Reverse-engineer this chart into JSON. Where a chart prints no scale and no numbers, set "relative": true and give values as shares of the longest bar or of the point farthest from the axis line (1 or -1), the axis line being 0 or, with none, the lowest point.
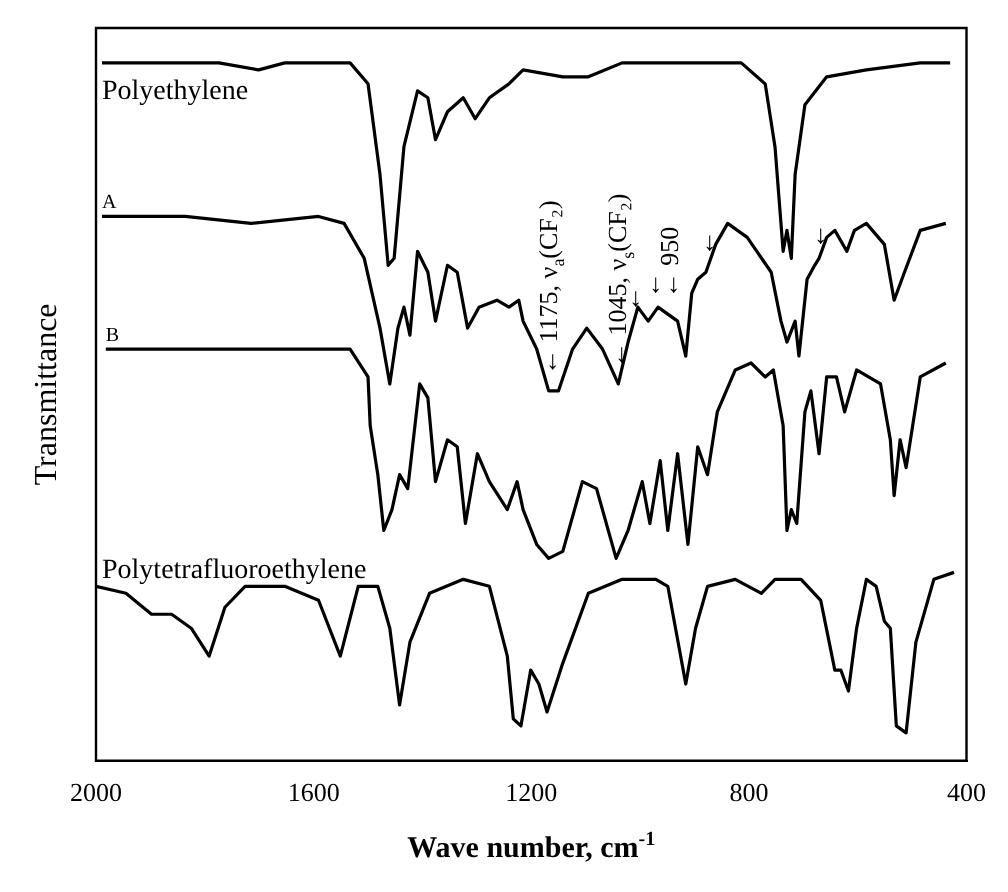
{
  "chart_data": {
    "type": "line",
    "relative": true,
    "xlabel": "Wave number, cm$^{-1}$",
    "ylabel": "Transmittance",
    "xlim": [
      2000,
      400
    ],
    "xticks": [
      2000,
      1600,
      1200,
      800,
      400
    ],
    "grid": false,
    "legend": false,
    "marker": "none",
    "line_style": "solid",
    "series": [
      {
        "name": "Polyethylene",
        "color": "#000000",
        "x": [
          1989,
          1774,
          1701,
          1653,
          1533,
          1500,
          1478,
          1463,
          1452,
          1434,
          1409,
          1390,
          1376,
          1354,
          1325,
          1303,
          1277,
          1241,
          1215,
          1142,
          1095,
          1033,
          971,
          814,
          770,
          752,
          737,
          730,
          722,
          715,
          697,
          657,
          584,
          485,
          430
        ],
        "values": [
          1.0,
          1.0,
          0.99,
          1.0,
          1.0,
          0.97,
          0.84,
          0.71,
          0.72,
          0.88,
          0.96,
          0.95,
          0.89,
          0.93,
          0.95,
          0.92,
          0.95,
          0.97,
          0.99,
          0.98,
          0.98,
          1.0,
          1.0,
          1.0,
          0.97,
          0.88,
          0.73,
          0.76,
          0.72,
          0.84,
          0.94,
          0.98,
          0.99,
          1.0,
          1.0
        ]
      },
      {
        "name": "A",
        "color": "#000000",
        "x": [
          1989,
          1836,
          1715,
          1591,
          1544,
          1507,
          1478,
          1460,
          1445,
          1434,
          1423,
          1409,
          1390,
          1376,
          1354,
          1336,
          1317,
          1296,
          1263,
          1241,
          1223,
          1215,
          1190,
          1168,
          1150,
          1124,
          1098,
          1069,
          1040,
          1022,
          1004,
          985,
          967,
          949,
          931,
          916,
          905,
          894,
          879,
          861,
          839,
          803,
          759,
          741,
          730,
          715,
          708,
          693,
          679,
          671,
          657,
          642,
          620,
          606,
          584,
          551,
          533,
          514,
          485,
          438
        ],
        "values": [
          0.78,
          0.78,
          0.77,
          0.78,
          0.77,
          0.72,
          0.62,
          0.54,
          0.62,
          0.65,
          0.61,
          0.73,
          0.7,
          0.63,
          0.71,
          0.7,
          0.62,
          0.65,
          0.66,
          0.65,
          0.66,
          0.63,
          0.59,
          0.53,
          0.53,
          0.59,
          0.62,
          0.59,
          0.54,
          0.6,
          0.65,
          0.63,
          0.65,
          0.64,
          0.63,
          0.58,
          0.67,
          0.69,
          0.7,
          0.74,
          0.77,
          0.75,
          0.7,
          0.63,
          0.6,
          0.63,
          0.58,
          0.69,
          0.71,
          0.72,
          0.75,
          0.76,
          0.73,
          0.76,
          0.77,
          0.74,
          0.66,
          0.7,
          0.76,
          0.77
        ]
      },
      {
        "name": "B",
        "color": "#000000",
        "x": [
          1982,
          1836,
          1653,
          1533,
          1500,
          1496,
          1482,
          1471,
          1456,
          1442,
          1427,
          1405,
          1390,
          1376,
          1354,
          1336,
          1321,
          1299,
          1277,
          1244,
          1226,
          1215,
          1190,
          1168,
          1142,
          1106,
          1080,
          1044,
          1022,
          996,
          982,
          963,
          949,
          931,
          912,
          894,
          876,
          858,
          825,
          796,
          770,
          755,
          737,
          730,
          722,
          712,
          697,
          686,
          671,
          657,
          639,
          624,
          602,
          558,
          540,
          533,
          522,
          511,
          485,
          438
        ],
        "values": [
          0.59,
          0.59,
          0.59,
          0.59,
          0.55,
          0.48,
          0.41,
          0.33,
          0.36,
          0.41,
          0.39,
          0.54,
          0.52,
          0.4,
          0.46,
          0.45,
          0.34,
          0.44,
          0.4,
          0.36,
          0.4,
          0.36,
          0.31,
          0.29,
          0.3,
          0.4,
          0.39,
          0.29,
          0.33,
          0.4,
          0.34,
          0.43,
          0.33,
          0.44,
          0.31,
          0.45,
          0.41,
          0.5,
          0.56,
          0.57,
          0.55,
          0.56,
          0.48,
          0.33,
          0.36,
          0.34,
          0.5,
          0.53,
          0.44,
          0.55,
          0.55,
          0.5,
          0.56,
          0.54,
          0.46,
          0.38,
          0.46,
          0.42,
          0.55,
          0.57
        ]
      },
      {
        "name": "Polytetrafluoroethylene",
        "color": "#000000",
        "x": [
          2000,
          1945,
          1898,
          1861,
          1825,
          1792,
          1763,
          1726,
          1653,
          1591,
          1551,
          1518,
          1482,
          1460,
          1442,
          1423,
          1387,
          1325,
          1277,
          1244,
          1233,
          1219,
          1201,
          1186,
          1171,
          1142,
          1095,
          1033,
          971,
          949,
          916,
          898,
          876,
          825,
          777,
          752,
          704,
          668,
          642,
          631,
          617,
          602,
          584,
          566,
          551,
          540,
          529,
          511,
          493,
          460,
          423
        ],
        "values": [
          0.25,
          0.24,
          0.21,
          0.21,
          0.19,
          0.15,
          0.22,
          0.25,
          0.25,
          0.23,
          0.15,
          0.25,
          0.25,
          0.19,
          0.08,
          0.17,
          0.24,
          0.26,
          0.25,
          0.15,
          0.06,
          0.05,
          0.13,
          0.11,
          0.07,
          0.14,
          0.24,
          0.26,
          0.26,
          0.25,
          0.11,
          0.19,
          0.25,
          0.26,
          0.24,
          0.26,
          0.26,
          0.23,
          0.13,
          0.13,
          0.1,
          0.19,
          0.26,
          0.25,
          0.2,
          0.19,
          0.05,
          0.04,
          0.17,
          0.26,
          0.27
        ]
      }
    ],
    "annotations": [
      {
        "text": "← 1175, ν$_{a}$(CF₂)",
        "x": 1168,
        "y": 0.53
      },
      {
        "text": "← 1045, ν$_{s}$(CF₂)",
        "x": 1040,
        "y": 0.54
      },
      {
        "text": "←",
        "x": 1015,
        "y": 0.62
      },
      {
        "text": "←",
        "x": 978,
        "y": 0.64
      },
      {
        "text": "← 950",
        "x": 945,
        "y": 0.64
      },
      {
        "text": "←",
        "x": 879,
        "y": 0.7
      },
      {
        "text": "←",
        "x": 675,
        "y": 0.71
      }
    ]
  }
}
